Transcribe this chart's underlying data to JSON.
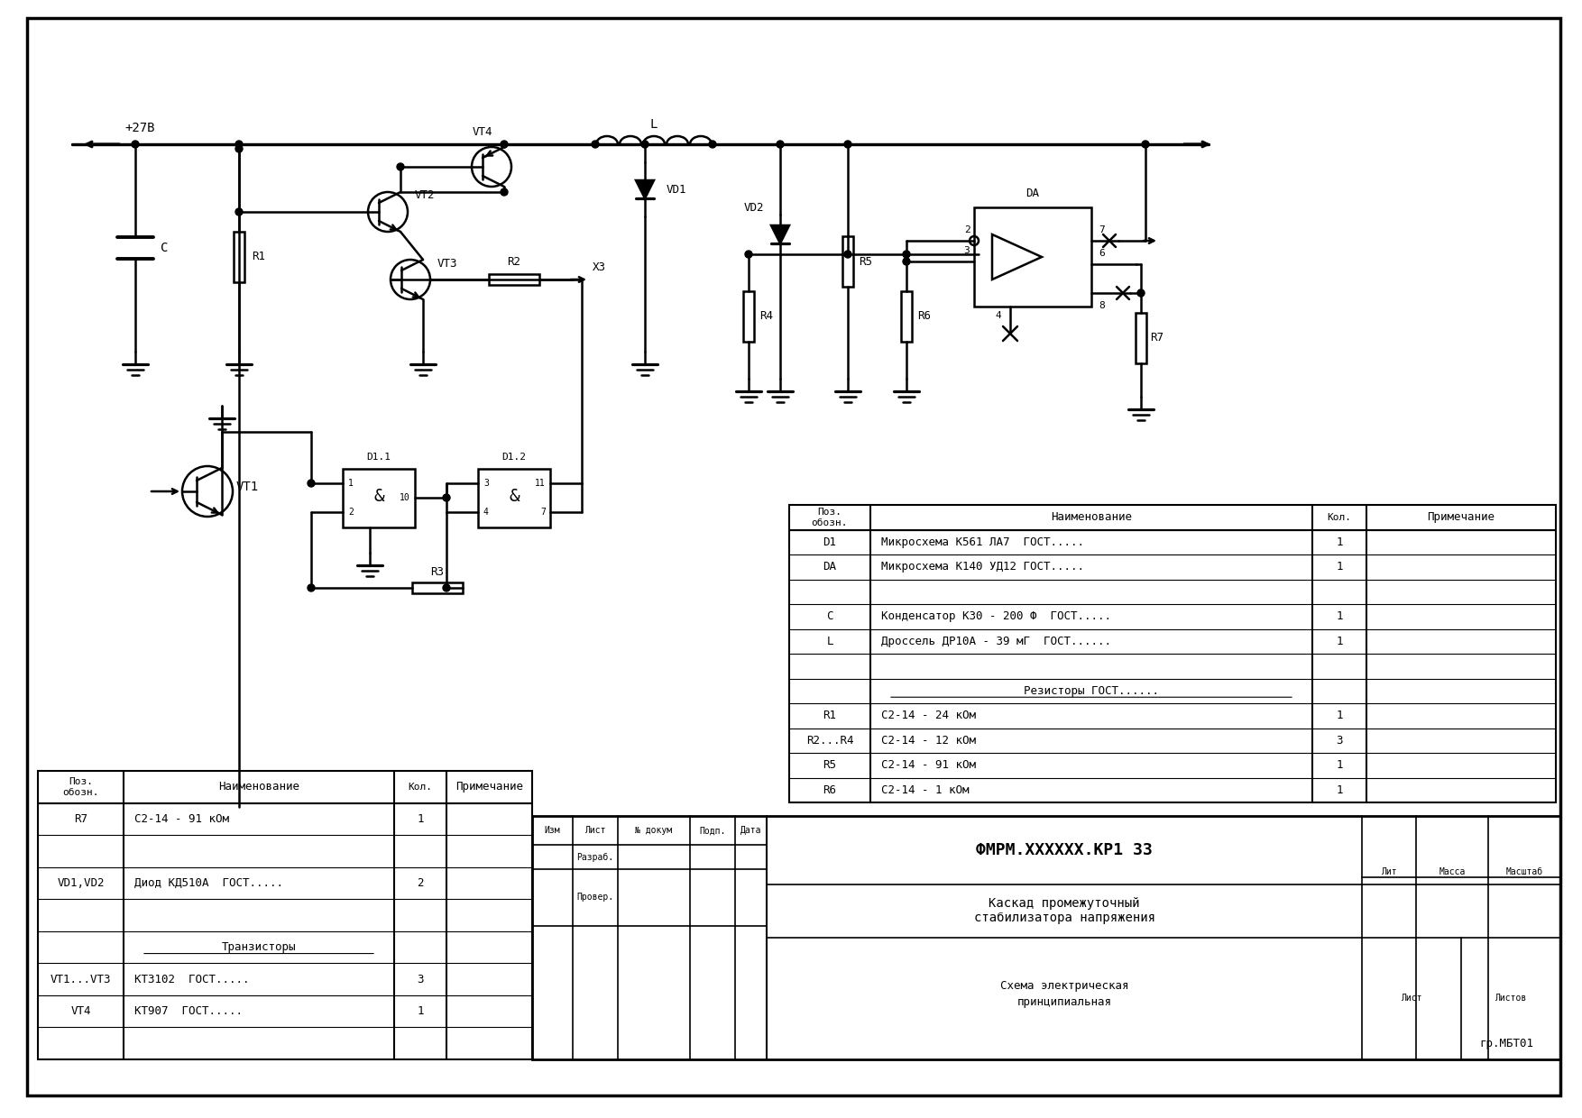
{
  "bg_color": "#ffffff",
  "line_color": "#000000",
  "title_doc_number": "ФМРМ.XXXXXX.КР1 ЗЗ",
  "title1": "Каскад промежуточный",
  "title2": "стабилизатора напряжения",
  "title3": "Схема электрическая",
  "title4": "принципиальная",
  "stamp": "гр.МБТ01",
  "bom_right_rows": [
    [
      "D1",
      "Микросхема К561 ЛА7  ГОСТ.....",
      "1",
      ""
    ],
    [
      "DA",
      "Микросхема К140 УД12 ГОСТ.....",
      "1",
      ""
    ],
    [
      "",
      "",
      "",
      ""
    ],
    [
      "C",
      "Конденсатор К30 - 200 Ф  ГОСТ.....",
      "1",
      ""
    ],
    [
      "L",
      "Дроссель ДР10А - 39 мГ  ГОСТ......",
      "1",
      ""
    ],
    [
      "",
      "",
      "",
      ""
    ],
    [
      "",
      "Резисторы ГОСТ......",
      "",
      ""
    ],
    [
      "R1",
      "С2-14 - 24 кОм",
      "1",
      ""
    ],
    [
      "R2...R4",
      "С2-14 - 12 кОм",
      "3",
      ""
    ],
    [
      "R5",
      "С2-14 - 91 кОм",
      "1",
      ""
    ],
    [
      "R6",
      "С2-14 - 1 кОм",
      "1",
      ""
    ]
  ],
  "bom_left_rows": [
    [
      "R7",
      "С2-14 - 91 кОм",
      "1",
      ""
    ],
    [
      "",
      "",
      "",
      ""
    ],
    [
      "VD1,VD2",
      "Диод КД510А  ГОСТ.....",
      "2",
      ""
    ],
    [
      "",
      "",
      "",
      ""
    ],
    [
      "",
      "Транзисторы",
      "",
      ""
    ],
    [
      "VT1...VT3",
      "КТ3102  ГОСТ.....",
      "3",
      ""
    ],
    [
      "VT4",
      "КТ907  ГОСТ.....",
      "1",
      ""
    ],
    [
      "",
      "",
      "",
      ""
    ]
  ]
}
